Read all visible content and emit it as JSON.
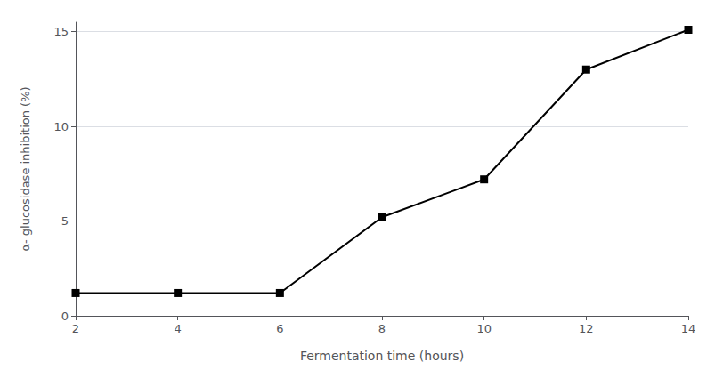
{
  "chart_data": {
    "type": "line",
    "x": [
      2,
      4,
      6,
      8,
      10,
      12,
      14
    ],
    "values": [
      1.2,
      1.2,
      1.2,
      5.2,
      7.2,
      13.0,
      15.1
    ],
    "xlabel": "Fermentation time (hours)",
    "ylabel": "α- glucosidase inhibition (%)",
    "xlim": [
      2,
      14
    ],
    "ylim": [
      0,
      15.5
    ],
    "xticks": [
      2,
      4,
      6,
      8,
      10,
      12,
      14
    ],
    "yticks": [
      0,
      5,
      10,
      15
    ],
    "color": "#000000",
    "marker": "square",
    "grid": true
  }
}
